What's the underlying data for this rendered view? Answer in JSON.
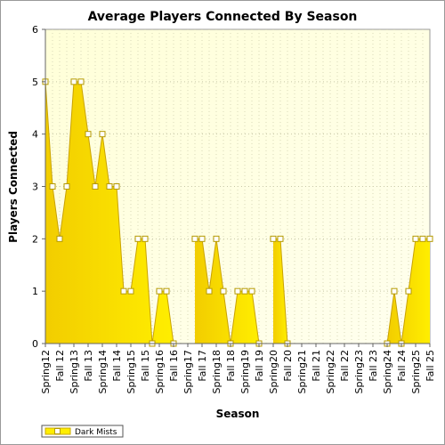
{
  "chart_data": {
    "type": "area",
    "title": "Average Players Connected By Season",
    "xlabel": "Season",
    "ylabel": "Players Connected",
    "ylim": [
      0,
      6
    ],
    "yticks": [
      0,
      1,
      2,
      3,
      4,
      5,
      6
    ],
    "grid": true,
    "legend_position": "bottom-left",
    "x_tick_labels": [
      "Spring12",
      "Fall 12",
      "Spring13",
      "Fall 13",
      "Spring14",
      "Fall 14",
      "Spring15",
      "Fall 15",
      "Spring16",
      "Fall 16",
      "Spring17",
      "Fall 17",
      "Spring18",
      "Fall 18",
      "Spring19",
      "Fall 19",
      "Spring20",
      "Fall 20",
      "Spring21",
      "Fall 21",
      "Spring22",
      "Fall 22",
      "Spring23",
      "Fall 23",
      "Spring24",
      "Fall 24",
      "Spring25",
      "Fall 25"
    ],
    "points_per_label": 2,
    "series": [
      {
        "name": "Dark Mists",
        "color": "#ffee00",
        "values": [
          5,
          3,
          2,
          3,
          5,
          5,
          4,
          3,
          4,
          3,
          3,
          1,
          1,
          2,
          2,
          0,
          1,
          1,
          0,
          null,
          null,
          2,
          2,
          1,
          2,
          1,
          0,
          1,
          1,
          1,
          0,
          null,
          2,
          2,
          0,
          null,
          null,
          null,
          null,
          null,
          null,
          null,
          null,
          null,
          null,
          null,
          null,
          null,
          0,
          1,
          0,
          1,
          2,
          2,
          2
        ]
      }
    ]
  }
}
